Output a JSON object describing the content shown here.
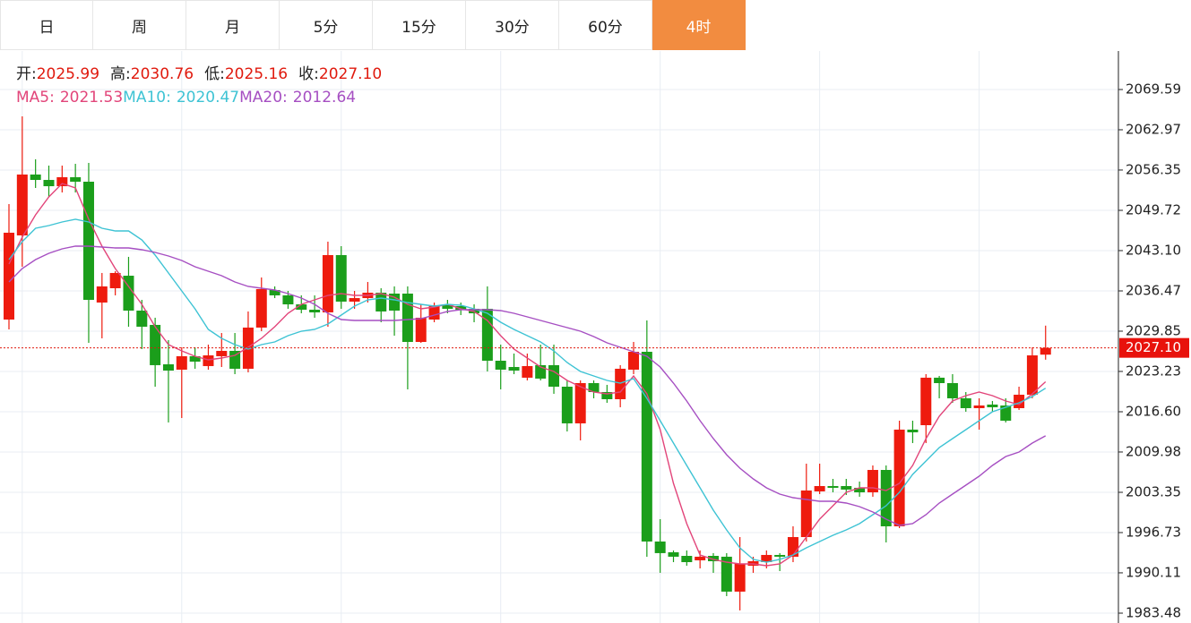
{
  "chart_data": {
    "type": "candlestick",
    "tabs": [
      "日",
      "周",
      "月",
      "5分",
      "15分",
      "30分",
      "60分",
      "4时"
    ],
    "active_tab": 7,
    "ohlc_labels": [
      "开:",
      "高:",
      "低:",
      "收:"
    ],
    "ohlc_value_labels": [
      "2025.99",
      "2030.76",
      "2025.16",
      "2027.10"
    ],
    "up_color": "#ee1b0e",
    "down_color": "#1b9e1b",
    "candles": {
      "open": [
        2031.76,
        2045.6,
        2055.61,
        2054.72,
        2053.69,
        2055.17,
        2054.43,
        2034.56,
        2036.91,
        2038.97,
        2033.23,
        2030.88,
        2024.4,
        2023.52,
        2025.73,
        2024.11,
        2025.73,
        2026.61,
        2023.67,
        2030.44,
        2036.62,
        2035.74,
        2034.26,
        2033.38,
        2032.94,
        2042.36,
        2034.71,
        2035.29,
        2036.18,
        2036.03,
        2036.03,
        2028.08,
        2031.76,
        2034.12,
        2033.97,
        2033.53,
        2033.53,
        2024.99,
        2023.96,
        2022.2,
        2024.26,
        2024.26,
        2020.72,
        2014.69,
        2021.31,
        2019.84,
        2018.66,
        2023.52,
        2026.46,
        1995.26,
        1993.49,
        1992.9,
        1992.17,
        1992.9,
        1992.76,
        1987.02,
        1991.28,
        1991.87,
        1993.05,
        1992.76,
        1995.99,
        2003.5,
        2004.38,
        2004.38,
        2004.09,
        2003.35,
        2007.03,
        1997.76,
        2013.66,
        2014.39,
        2022.2,
        2021.31,
        2018.81,
        2017.19,
        2017.78,
        2017.63,
        2017.19,
        2019.4,
        2025.99
      ],
      "high": [
        2050.75,
        2065.17,
        2058.11,
        2057.08,
        2057.08,
        2057.37,
        2057.52,
        2039.42,
        2039.71,
        2042.07,
        2035.0,
        2032.06,
        2028.38,
        2027.2,
        2027.2,
        2027.64,
        2029.55,
        2029.55,
        2033.09,
        2038.68,
        2037.21,
        2036.47,
        2035.74,
        2035.74,
        2044.57,
        2043.83,
        2036.47,
        2037.94,
        2036.91,
        2037.21,
        2037.21,
        2034.26,
        2034.56,
        2035.0,
        2034.56,
        2034.26,
        2037.21,
        2027.64,
        2026.17,
        2026.17,
        2027.64,
        2027.64,
        2021.75,
        2021.75,
        2021.75,
        2021.02,
        2024.26,
        2028.08,
        2031.61,
        1998.94,
        1993.79,
        1993.79,
        1993.79,
        1993.35,
        1993.35,
        1995.99,
        1992.76,
        1993.79,
        1993.35,
        1997.76,
        2008.06,
        2008.06,
        2005.56,
        2005.56,
        2005.12,
        2007.77,
        2007.77,
        2015.13,
        2015.13,
        2022.78,
        2022.49,
        2022.78,
        2019.84,
        2018.81,
        2018.37,
        2018.81,
        2020.72,
        2027.2,
        2030.76
      ],
      "low": [
        2030.14,
        2040.45,
        2053.4,
        2051.93,
        2052.66,
        2052.66,
        2027.93,
        2028.67,
        2035.74,
        2030.58,
        2026.9,
        2020.72,
        2014.84,
        2015.57,
        2023.67,
        2023.52,
        2023.96,
        2022.78,
        2023.08,
        2029.85,
        2035.29,
        2033.53,
        2032.79,
        2032.06,
        2030.58,
        2033.53,
        2033.53,
        2034.56,
        2031.32,
        2029.11,
        2020.28,
        2027.93,
        2031.32,
        2032.79,
        2032.5,
        2031.32,
        2023.23,
        2020.28,
        2022.78,
        2021.75,
        2021.75,
        2019.55,
        2013.36,
        2011.89,
        2018.81,
        2018.07,
        2017.34,
        2022.78,
        1992.76,
        1990.11,
        1991.87,
        1991.28,
        1990.84,
        1990.11,
        1986.28,
        1983.93,
        1990.11,
        1990.84,
        1990.4,
        1991.87,
        1995.26,
        2003.06,
        2003.35,
        2002.91,
        2002.62,
        2002.62,
        1995.11,
        1997.47,
        2011.45,
        2011.45,
        2018.81,
        2018.07,
        2016.6,
        2013.66,
        2016.6,
        2014.84,
        2016.9,
        2018.81,
        2025.16
      ],
      "close": [
        2046.04,
        2055.61,
        2054.72,
        2053.69,
        2055.17,
        2054.43,
        2035.0,
        2037.21,
        2039.42,
        2033.23,
        2030.58,
        2024.26,
        2023.37,
        2025.73,
        2024.84,
        2025.87,
        2026.61,
        2023.67,
        2030.44,
        2036.77,
        2035.74,
        2034.26,
        2033.38,
        2032.94,
        2042.36,
        2034.71,
        2035.29,
        2036.18,
        2033.09,
        2033.23,
        2028.08,
        2032.06,
        2034.12,
        2033.53,
        2033.38,
        2032.79,
        2024.99,
        2023.52,
        2023.37,
        2024.11,
        2022.05,
        2020.72,
        2014.69,
        2021.31,
        2019.84,
        2018.66,
        2023.67,
        2026.46,
        1995.26,
        1993.35,
        1992.76,
        1991.87,
        1992.76,
        1992.02,
        1987.02,
        1991.58,
        1992.02,
        1993.05,
        1992.76,
        1995.99,
        2003.65,
        2004.38,
        2004.09,
        2003.8,
        2003.35,
        2007.03,
        1997.76,
        2013.66,
        2013.22,
        2022.2,
        2021.31,
        2018.81,
        2017.19,
        2017.63,
        2017.34,
        2015.13,
        2019.4,
        2025.87,
        2027.1
      ]
    },
    "ma": [
      {
        "name": "MA5:",
        "value_label": "2021.53",
        "color": "#e2457a",
        "values": [
          2040.89,
          2045.3,
          2048.98,
          2051.93,
          2054.14,
          2053.4,
          2048.25,
          2043.83,
          2040.15,
          2037.21,
          2034.26,
          2030.58,
          2027.64,
          2026.61,
          2025.73,
          2025.14,
          2025.43,
          2025.87,
          2027.2,
          2028.67,
          2030.58,
          2032.79,
          2034.26,
          2035.0,
          2035.74,
          2036.03,
          2035.74,
          2035.74,
          2036.03,
          2035.44,
          2034.26,
          2033.53,
          2033.82,
          2034.26,
          2033.53,
          2033.09,
          2031.61,
          2029.11,
          2026.9,
          2025.43,
          2023.96,
          2023.23,
          2021.75,
          2020.72,
          2019.84,
          2019.55,
          2019.84,
          2022.49,
          2019.55,
          2013.66,
          2004.83,
          1998.2,
          1993.05,
          1992.32,
          1991.87,
          1991.58,
          1991.58,
          1991.28,
          1991.58,
          1993.05,
          1995.99,
          1998.94,
          2001.15,
          2003.35,
          2004.09,
          2004.09,
          2003.65,
          2004.83,
          2007.77,
          2012.19,
          2015.87,
          2018.37,
          2019.25,
          2019.84,
          2019.25,
          2018.37,
          2017.78,
          2019.55,
          2021.53
        ]
      },
      {
        "name": "MA10:",
        "value_label": "2020.47",
        "color": "#3ec3d4",
        "values": [
          2041.62,
          2044.57,
          2046.78,
          2047.22,
          2047.81,
          2048.25,
          2047.81,
          2046.78,
          2046.33,
          2046.33,
          2044.86,
          2042.36,
          2039.42,
          2036.47,
          2033.53,
          2030.14,
          2028.67,
          2027.64,
          2026.9,
          2027.64,
          2028.08,
          2029.11,
          2029.85,
          2030.14,
          2031.03,
          2032.5,
          2033.97,
          2035.0,
          2035.29,
          2035.0,
          2034.56,
          2034.26,
          2033.97,
          2034.26,
          2034.12,
          2033.53,
          2032.79,
          2031.32,
          2030.14,
          2029.11,
          2028.08,
          2026.61,
          2024.7,
          2023.23,
          2022.49,
          2021.75,
          2021.31,
          2022.05,
          2018.81,
          2015.13,
          2011.45,
          2007.77,
          2004.09,
          2000.41,
          1997.17,
          1994.23,
          1992.32,
          1991.87,
          1992.32,
          1993.05,
          1994.23,
          1995.26,
          1996.29,
          1997.17,
          1998.2,
          1999.67,
          2001.15,
          2003.35,
          2006.3,
          2008.51,
          2010.71,
          2012.19,
          2013.66,
          2015.13,
          2016.6,
          2017.34,
          2018.07,
          2019.1,
          2020.47
        ]
      },
      {
        "name": "MA20:",
        "value_label": "2012.64",
        "color": "#a64fc2",
        "values": [
          2037.94,
          2040.15,
          2041.62,
          2042.65,
          2043.39,
          2043.83,
          2043.83,
          2043.68,
          2043.54,
          2043.54,
          2043.24,
          2042.8,
          2042.21,
          2041.48,
          2040.45,
          2039.71,
          2038.97,
          2037.94,
          2037.21,
          2036.91,
          2036.62,
          2036.03,
          2035.29,
          2034.26,
          2032.79,
          2031.76,
          2031.61,
          2031.61,
          2031.61,
          2031.61,
          2031.76,
          2031.91,
          2032.5,
          2033.09,
          2033.38,
          2033.38,
          2033.38,
          2033.23,
          2032.79,
          2032.2,
          2031.61,
          2031.03,
          2030.44,
          2029.85,
          2028.97,
          2027.93,
          2027.2,
          2026.46,
          2025.73,
          2023.96,
          2021.31,
          2018.37,
          2015.13,
          2012.19,
          2009.54,
          2007.33,
          2005.56,
          2004.09,
          2003.06,
          2002.47,
          2002.18,
          2001.88,
          2001.88,
          2001.59,
          2001.0,
          2000.12,
          1998.94,
          1997.91,
          1998.2,
          1999.67,
          2001.59,
          2003.06,
          2004.53,
          2006.0,
          2007.77,
          2009.24,
          2009.98,
          2011.45,
          2012.64
        ]
      }
    ],
    "last_price": {
      "value": 2027.1,
      "label": "2027.10"
    },
    "ylim": [
      1981.86,
      2075.92
    ],
    "yticks": [
      {
        "value": 2069.59,
        "label": "2069.59"
      },
      {
        "value": 2062.97,
        "label": "2062.97"
      },
      {
        "value": 2056.35,
        "label": "2056.35"
      },
      {
        "value": 2049.72,
        "label": "2049.72"
      },
      {
        "value": 2043.1,
        "label": "2043.10"
      },
      {
        "value": 2036.47,
        "label": "2036.47"
      },
      {
        "value": 2029.85,
        "label": "2029.85"
      },
      {
        "value": 2023.23,
        "label": "2023.23"
      },
      {
        "value": 2016.6,
        "label": "2016.60"
      },
      {
        "value": 2009.98,
        "label": "2009.98"
      },
      {
        "value": 2003.35,
        "label": "2003.35"
      },
      {
        "value": 1996.73,
        "label": "1996.73"
      },
      {
        "value": 1990.11,
        "label": "1990.11"
      },
      {
        "value": 1983.48,
        "label": "1983.48"
      }
    ],
    "grid": true
  }
}
